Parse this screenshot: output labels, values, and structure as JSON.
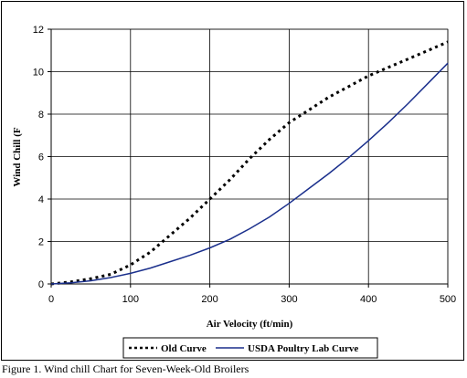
{
  "caption": "Figure 1.  Wind chill Chart for Seven-Week-Old Broilers",
  "chart_data": {
    "type": "line",
    "xlabel": "Air Velocity (ft/min)",
    "ylabel": "Wind Chill (F",
    "xlim": [
      0,
      500
    ],
    "ylim": [
      0,
      12
    ],
    "x_ticks": [
      0,
      100,
      200,
      300,
      400,
      500
    ],
    "y_ticks": [
      0,
      2,
      4,
      6,
      8,
      10,
      12
    ],
    "grid": true,
    "legend_position": "bottom",
    "series": [
      {
        "name": "Old Curve",
        "style": "dotted",
        "color": "#000000",
        "x": [
          0,
          25,
          50,
          75,
          100,
          125,
          150,
          175,
          200,
          225,
          250,
          275,
          300,
          325,
          350,
          375,
          400,
          425,
          450,
          475,
          500
        ],
        "y": [
          0,
          0.1,
          0.25,
          0.45,
          0.9,
          1.5,
          2.3,
          3.1,
          4.0,
          4.9,
          5.9,
          6.8,
          7.6,
          8.2,
          8.8,
          9.3,
          9.8,
          10.2,
          10.6,
          11.0,
          11.4
        ]
      },
      {
        "name": "USDA Poultry Lab Curve",
        "style": "solid",
        "color": "#1a2f8c",
        "x": [
          0,
          25,
          50,
          75,
          100,
          125,
          150,
          175,
          200,
          225,
          250,
          275,
          300,
          325,
          350,
          375,
          400,
          425,
          450,
          475,
          500
        ],
        "y": [
          0,
          0.05,
          0.15,
          0.3,
          0.5,
          0.75,
          1.05,
          1.35,
          1.7,
          2.1,
          2.6,
          3.15,
          3.8,
          4.5,
          5.2,
          5.95,
          6.75,
          7.6,
          8.5,
          9.45,
          10.4
        ]
      }
    ]
  }
}
